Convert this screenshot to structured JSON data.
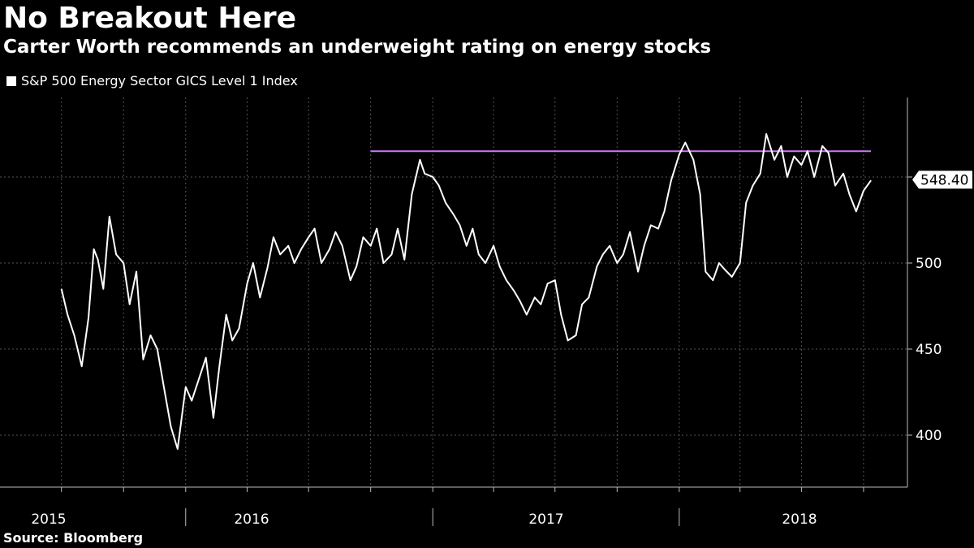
{
  "title": "No Breakout Here",
  "subtitle": "Carter Worth recommends an underweight rating on energy stocks",
  "source": "Source: Bloomberg",
  "colors": {
    "background": "#000000",
    "series": "#ffffff",
    "resistance": "#c77cf2",
    "grid": "#555555"
  },
  "chart_data": {
    "type": "line",
    "title": "No Breakout Here",
    "subtitle": "Carter Worth recommends an underweight rating on energy stocks",
    "legend": [
      "S&P 500 Energy Sector GICS Level 1 Index"
    ],
    "grid": true,
    "legend_position": "top-left",
    "ylim": [
      370,
      570
    ],
    "xlim": [
      "2015-07-01",
      "2018-10-12"
    ],
    "y_ticks": [
      400,
      450,
      500
    ],
    "x_tick_labels": [
      {
        "label": "2015",
        "date": "2015-07-01"
      },
      {
        "label": "2016",
        "date": "2016-07-01"
      },
      {
        "label": "2017",
        "date": "2017-07-01"
      },
      {
        "label": "2018",
        "date": "2018-07-01"
      }
    ],
    "last_value": 548.4,
    "last_value_label": "548.40",
    "series": [
      {
        "name": "S&P 500 Energy Sector GICS Level 1 Index",
        "x": [
          "2015-07-01",
          "2015-07-10",
          "2015-07-20",
          "2015-07-31",
          "2015-08-10",
          "2015-08-18",
          "2015-08-24",
          "2015-09-01",
          "2015-09-10",
          "2015-09-20",
          "2015-10-01",
          "2015-10-10",
          "2015-10-20",
          "2015-10-30",
          "2015-11-10",
          "2015-11-20",
          "2015-12-01",
          "2015-12-10",
          "2015-12-20",
          "2016-01-01",
          "2016-01-10",
          "2016-01-20",
          "2016-01-31",
          "2016-02-11",
          "2016-02-20",
          "2016-03-01",
          "2016-03-10",
          "2016-03-20",
          "2016-04-01",
          "2016-04-10",
          "2016-04-20",
          "2016-05-01",
          "2016-05-10",
          "2016-05-20",
          "2016-06-01",
          "2016-06-10",
          "2016-06-20",
          "2016-07-01",
          "2016-07-10",
          "2016-07-20",
          "2016-08-01",
          "2016-08-10",
          "2016-08-20",
          "2016-09-01",
          "2016-09-10",
          "2016-09-20",
          "2016-10-01",
          "2016-10-10",
          "2016-10-20",
          "2016-11-01",
          "2016-11-10",
          "2016-11-20",
          "2016-12-01",
          "2016-12-13",
          "2016-12-20",
          "2017-01-01",
          "2017-01-10",
          "2017-01-20",
          "2017-02-01",
          "2017-02-10",
          "2017-02-20",
          "2017-03-01",
          "2017-03-10",
          "2017-03-20",
          "2017-04-01",
          "2017-04-10",
          "2017-04-20",
          "2017-05-01",
          "2017-05-10",
          "2017-05-20",
          "2017-06-01",
          "2017-06-10",
          "2017-06-20",
          "2017-07-01",
          "2017-07-10",
          "2017-07-20",
          "2017-08-01",
          "2017-08-10",
          "2017-08-20",
          "2017-09-01",
          "2017-09-10",
          "2017-09-20",
          "2017-10-01",
          "2017-10-10",
          "2017-10-20",
          "2017-11-01",
          "2017-11-10",
          "2017-11-20",
          "2017-12-01",
          "2017-12-10",
          "2017-12-20",
          "2018-01-01",
          "2018-01-10",
          "2018-01-22",
          "2018-02-01",
          "2018-02-09",
          "2018-02-20",
          "2018-03-01",
          "2018-03-10",
          "2018-03-20",
          "2018-04-01",
          "2018-04-10",
          "2018-04-20",
          "2018-05-01",
          "2018-05-10",
          "2018-05-22",
          "2018-06-01",
          "2018-06-10",
          "2018-06-20",
          "2018-07-01",
          "2018-07-10",
          "2018-07-20",
          "2018-08-01",
          "2018-08-10",
          "2018-08-20",
          "2018-09-01",
          "2018-09-10",
          "2018-09-20",
          "2018-10-01",
          "2018-10-12"
        ],
        "values": [
          485,
          470,
          458,
          440,
          468,
          508,
          502,
          485,
          527,
          505,
          500,
          476,
          495,
          444,
          458,
          450,
          425,
          405,
          392,
          428,
          420,
          432,
          445,
          410,
          440,
          470,
          455,
          462,
          488,
          500,
          480,
          497,
          515,
          505,
          510,
          500,
          508,
          515,
          520,
          500,
          508,
          518,
          510,
          490,
          498,
          515,
          510,
          520,
          500,
          505,
          520,
          502,
          540,
          560,
          552,
          550,
          545,
          535,
          528,
          522,
          510,
          520,
          505,
          500,
          510,
          498,
          490,
          484,
          478,
          470,
          480,
          476,
          488,
          490,
          470,
          455,
          458,
          476,
          480,
          498,
          505,
          510,
          500,
          505,
          518,
          495,
          510,
          522,
          520,
          530,
          548,
          563,
          570,
          560,
          540,
          495,
          490,
          500,
          496,
          492,
          500,
          535,
          545,
          552,
          575,
          560,
          568,
          550,
          562,
          557,
          565,
          550,
          568,
          564,
          545,
          552,
          540,
          530,
          542,
          548
        ]
      }
    ],
    "annotations": [
      {
        "type": "horizontal_line",
        "y": 565,
        "x_start": "2016-10-01",
        "x_end": "2018-10-12",
        "color": "#c77cf2"
      }
    ]
  }
}
